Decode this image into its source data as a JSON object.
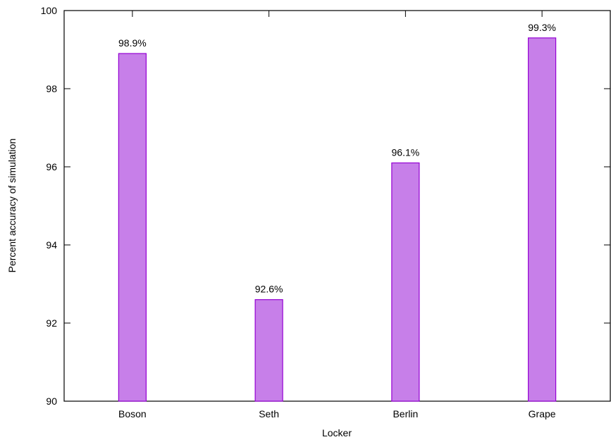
{
  "chart_data": {
    "type": "bar",
    "xlabel": "Locker",
    "ylabel": "Percent accuracy of simulation",
    "categories": [
      "Boson",
      "Seth",
      "Berlin",
      "Grape"
    ],
    "values": [
      98.9,
      92.6,
      96.1,
      99.3
    ],
    "data_labels": [
      "98.9%",
      "92.6%",
      "96.1%",
      "99.3%"
    ],
    "ylim": [
      90,
      100
    ],
    "yticks": [
      90,
      92,
      94,
      96,
      98,
      100
    ],
    "ytick_labels": [
      "90",
      "92",
      "94",
      "96",
      "98",
      "100"
    ],
    "grid": false,
    "legend": "none",
    "colors": {
      "bar_fill": "#c77fe9",
      "bar_stroke": "#9400d3",
      "axis": "#000000"
    }
  }
}
